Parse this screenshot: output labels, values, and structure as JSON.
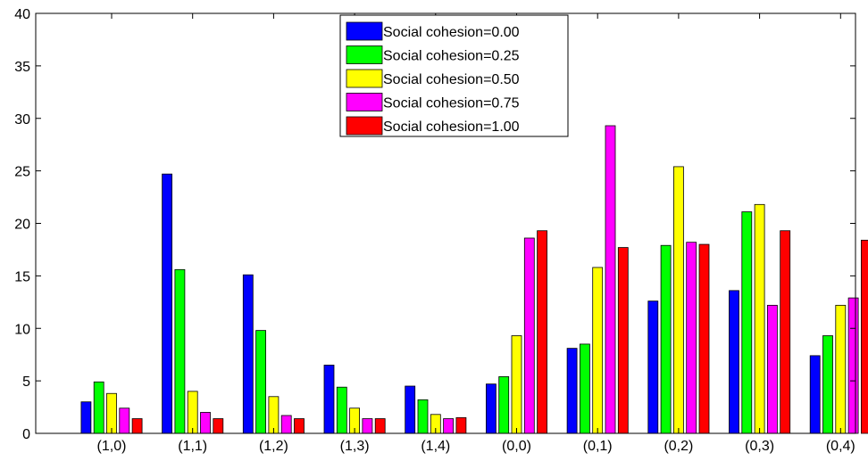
{
  "chart_data": {
    "type": "bar",
    "title": "",
    "xlabel": "",
    "ylabel": "",
    "ylim": [
      0,
      40
    ],
    "yticks": [
      0,
      5,
      10,
      15,
      20,
      25,
      30,
      35,
      40
    ],
    "grid": false,
    "legend_position": "top-center",
    "categories": [
      "(1,0)",
      "(1,1)",
      "(1,2)",
      "(1,3)",
      "(1,4)",
      "(0,0)",
      "(0,1)",
      "(0,2)",
      "(0,3)",
      "(0,4)"
    ],
    "series": [
      {
        "name": "Social cohesion=0.00",
        "color": "#0000ff",
        "values": [
          3.0,
          24.7,
          15.1,
          6.5,
          4.5,
          4.7,
          8.1,
          12.6,
          13.6,
          7.4
        ]
      },
      {
        "name": "Social cohesion=0.25",
        "color": "#00ff00",
        "values": [
          4.9,
          15.6,
          9.8,
          4.4,
          3.2,
          5.4,
          8.5,
          17.9,
          21.1,
          9.3
        ]
      },
      {
        "name": "Social cohesion=0.50",
        "color": "#ffff00",
        "values": [
          3.8,
          4.0,
          3.5,
          2.4,
          1.8,
          9.3,
          15.8,
          25.4,
          21.8,
          12.2
        ]
      },
      {
        "name": "Social cohesion=0.75",
        "color": "#ff00ff",
        "values": [
          2.4,
          2.0,
          1.7,
          1.4,
          1.4,
          18.6,
          29.3,
          18.2,
          12.2,
          12.9
        ]
      },
      {
        "name": "Social cohesion=1.00",
        "color": "#ff0000",
        "values": [
          1.4,
          1.4,
          1.4,
          1.4,
          1.5,
          19.3,
          17.7,
          18.0,
          19.3,
          18.4
        ]
      }
    ]
  }
}
